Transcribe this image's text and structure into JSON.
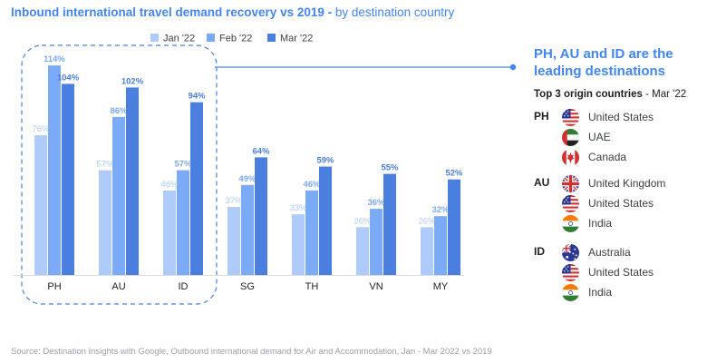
{
  "title": {
    "main": "Inbound international travel demand recovery vs 2019 -",
    "sub": " by destination country"
  },
  "chart_data": {
    "type": "bar",
    "categories": [
      "PH",
      "AU",
      "ID",
      "SG",
      "TH",
      "VN",
      "MY"
    ],
    "series": [
      {
        "name": "Jan '22",
        "values": [
          76,
          57,
          46,
          37,
          33,
          26,
          26
        ],
        "labels": [
          "76%",
          "57%",
          "46%",
          "37%",
          "33%",
          "26%",
          "26%"
        ],
        "color": "#aecbfa"
      },
      {
        "name": "Feb '22",
        "values": [
          114,
          86,
          57,
          49,
          46,
          36,
          32
        ],
        "labels": [
          "114%",
          "86%",
          "57%",
          "49%",
          "46%",
          "36%",
          "32%"
        ],
        "color": "#7baaf7"
      },
      {
        "name": "Mar '22",
        "values": [
          104,
          102,
          94,
          64,
          59,
          55,
          52
        ],
        "labels": [
          "104%",
          "102%",
          "94%",
          "64%",
          "59%",
          "55%",
          "52%"
        ],
        "color": "#4a7fe0"
      }
    ],
    "ylim": [
      0,
      120
    ],
    "grid": false,
    "legend": "top",
    "highlight_categories": [
      "PH",
      "AU",
      "ID"
    ]
  },
  "panel": {
    "heading_line1": "PH, AU and ID are the",
    "heading_line2": "leading destinations",
    "subtitle_bold": "Top 3 origin countries",
    "subtitle_rest": " - Mar '22",
    "groups": [
      {
        "code": "PH",
        "countries": [
          {
            "name": "United States",
            "flag": "us-flag-icon"
          },
          {
            "name": "UAE",
            "flag": "uae-flag-icon"
          },
          {
            "name": "Canada",
            "flag": "canada-flag-icon"
          }
        ]
      },
      {
        "code": "AU",
        "countries": [
          {
            "name": "United Kingdom",
            "flag": "uk-flag-icon"
          },
          {
            "name": "United States",
            "flag": "us-flag-icon"
          },
          {
            "name": "India",
            "flag": "india-flag-icon"
          }
        ]
      },
      {
        "code": "ID",
        "countries": [
          {
            "name": "Australia",
            "flag": "australia-flag-icon"
          },
          {
            "name": "United States",
            "flag": "us-flag-icon"
          },
          {
            "name": "India",
            "flag": "india-flag-icon"
          }
        ]
      }
    ]
  },
  "source": "Source: Destination Insights with Google, Outbound international demand for Air and Accommodation, Jan - Mar 2022 vs 2019"
}
